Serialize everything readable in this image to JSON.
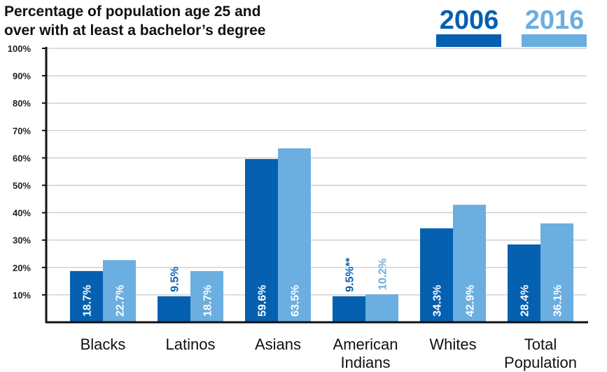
{
  "chart_data": {
    "type": "bar",
    "title": "Percentage of population age 25 and over with at least a bachelor’s degree",
    "title_lines": [
      "Percentage of population age 25 and",
      "over with at least a bachelor’s degree"
    ],
    "categories": [
      [
        "Blacks"
      ],
      [
        "Latinos"
      ],
      [
        "Asians"
      ],
      [
        "American",
        "Indians"
      ],
      [
        "Whites"
      ],
      [
        "Total",
        "Population"
      ]
    ],
    "series": [
      {
        "name": "2006",
        "color": "#0560b0",
        "values": [
          18.7,
          9.5,
          59.6,
          9.5,
          34.3,
          28.4
        ],
        "labels": [
          "18.7%",
          "9.5%",
          "59.6%",
          "9.5%**",
          "34.3%",
          "28.4%"
        ]
      },
      {
        "name": "2016",
        "color": "#6baee0",
        "values": [
          22.7,
          18.7,
          63.5,
          10.2,
          42.9,
          36.1
        ],
        "labels": [
          "22.7%",
          "18.7%",
          "63.5%",
          "10.2%",
          "42.9%",
          "36.1%"
        ]
      }
    ],
    "ylim": [
      0,
      100
    ],
    "yticks": [
      "10%",
      "20%",
      "30%",
      "40%",
      "50%",
      "60%",
      "70%",
      "80%",
      "90%",
      "100%"
    ],
    "grid": true,
    "legend_position": "top-right",
    "xlabel": "",
    "ylabel": ""
  }
}
